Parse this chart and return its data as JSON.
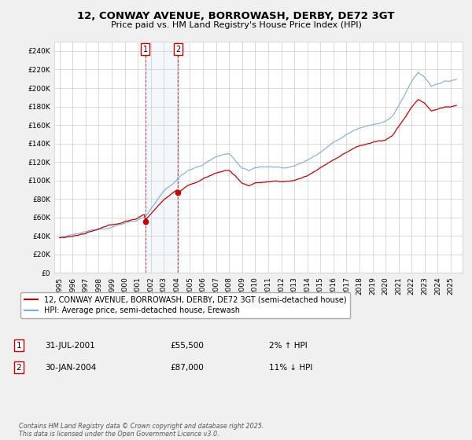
{
  "title": "12, CONWAY AVENUE, BORROWASH, DERBY, DE72 3GT",
  "subtitle": "Price paid vs. HM Land Registry's House Price Index (HPI)",
  "legend_line1": "12, CONWAY AVENUE, BORROWASH, DERBY, DE72 3GT (semi-detached house)",
  "legend_line2": "HPI: Average price, semi-detached house, Erewash",
  "annotation1_date": "31-JUL-2001",
  "annotation1_price": "£55,500",
  "annotation1_hpi": "2% ↑ HPI",
  "annotation2_date": "30-JAN-2004",
  "annotation2_price": "£87,000",
  "annotation2_hpi": "11% ↓ HPI",
  "footer": "Contains HM Land Registry data © Crown copyright and database right 2025.\nThis data is licensed under the Open Government Licence v3.0.",
  "ylim": [
    0,
    250000
  ],
  "sale1_year": 2001.583,
  "sale1_price": 55500,
  "sale2_year": 2004.083,
  "sale2_price": 87000,
  "red_color": "#cc0000",
  "blue_color": "#7aaddb",
  "annotation_box_color": "#cc0000",
  "background_color": "#f0f0f0",
  "plot_bg_color": "#ffffff"
}
